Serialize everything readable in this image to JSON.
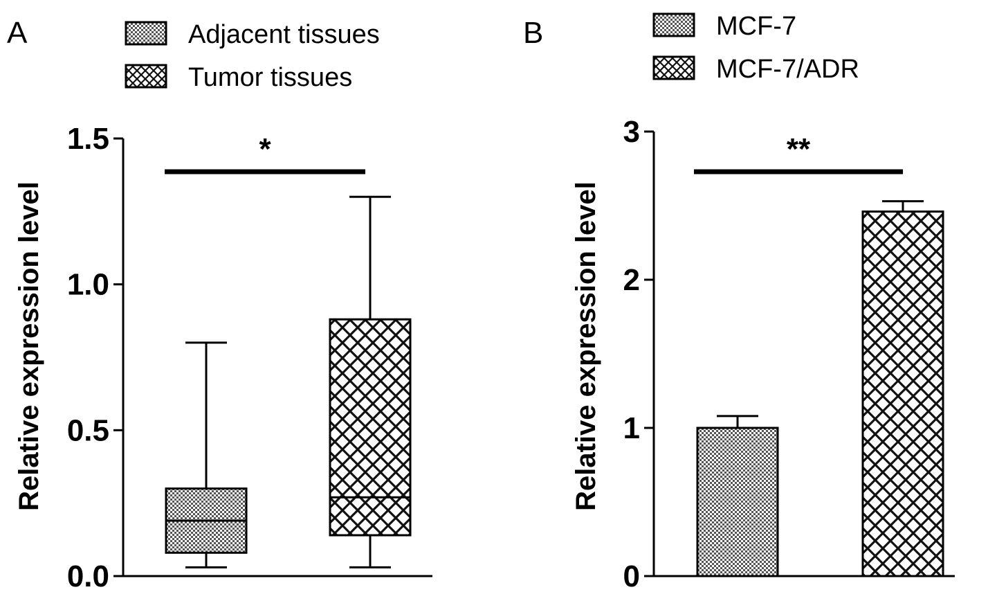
{
  "chart_data": [
    {
      "panel": "A",
      "type": "box",
      "title": "",
      "xlabel": "",
      "ylabel": "Relative expression level",
      "ylim": [
        0,
        1.5
      ],
      "yticks": [
        0.0,
        0.5,
        1.0,
        1.5
      ],
      "ytick_labels": [
        "0.0",
        "0.5",
        "1.0",
        "1.5"
      ],
      "legend_position": "top",
      "grid": false,
      "significance": "*",
      "series": [
        {
          "name": "Adjacent tissues",
          "pattern": "dots",
          "min": 0.03,
          "q1": 0.08,
          "median": 0.19,
          "q3": 0.3,
          "max": 0.8
        },
        {
          "name": "Tumor tissues",
          "pattern": "crosshatch",
          "min": 0.03,
          "q1": 0.14,
          "median": 0.27,
          "q3": 0.88,
          "max": 1.3
        }
      ]
    },
    {
      "panel": "B",
      "type": "bar",
      "title": "",
      "xlabel": "",
      "ylabel": "Relative expression level",
      "ylim": [
        0,
        3
      ],
      "yticks": [
        0,
        1,
        2,
        3
      ],
      "ytick_labels": [
        "0",
        "1",
        "2",
        "3"
      ],
      "legend_position": "top",
      "grid": false,
      "significance": "**",
      "series": [
        {
          "name": "MCF-7",
          "pattern": "dots",
          "value": 1.0,
          "error": 0.08
        },
        {
          "name": "MCF-7/ADR",
          "pattern": "crosshatch",
          "value": 2.46,
          "error": 0.07
        }
      ]
    }
  ]
}
